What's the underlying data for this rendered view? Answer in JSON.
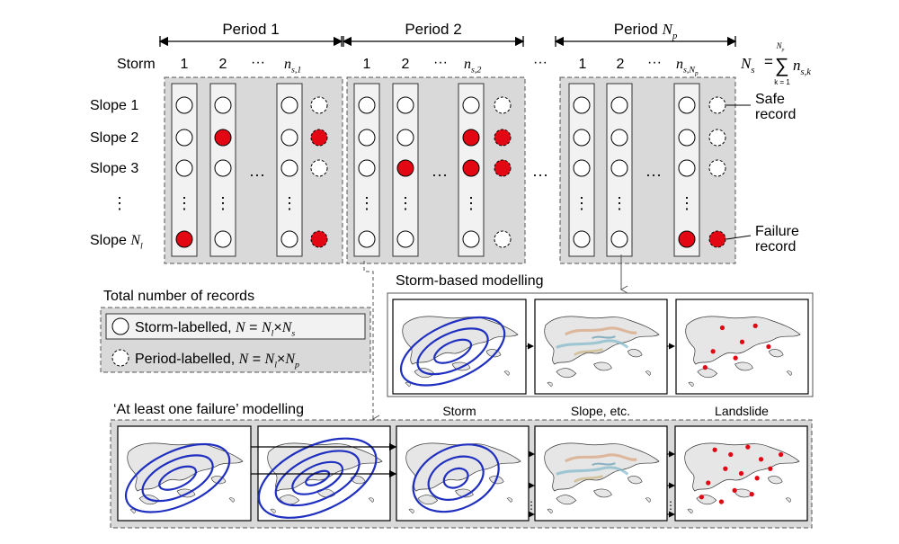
{
  "header": {
    "period1": "Period 1",
    "period2": "Period 2",
    "periodN": "Period",
    "periodN_sub": "p",
    "storm_label": "Storm",
    "storm_nums": [
      "1",
      "2"
    ],
    "ellipsis": "···",
    "ns_main": "n",
    "ns_sub1": "s,1",
    "ns_sub2": "s,2",
    "ns_subN": "s,N",
    "ns_subN_p": "p",
    "formula_lhs": "N",
    "formula_lhs_sub": "s",
    "formula_eq": "=",
    "formula_sum": "∑",
    "formula_top": "N",
    "formula_top_sub": "p",
    "formula_bottom": "k = 1",
    "formula_term": "n",
    "formula_term_sub": "s,k"
  },
  "slopes": [
    "Slope 1",
    "Slope 2",
    "Slope 3",
    "Slope"
  ],
  "slope_last_sub": "l",
  "slope_last_var": "N",
  "vdots": "⋮",
  "labels": {
    "safe_line1": "Safe",
    "safe_line2": "record",
    "failure_line1": "Failure",
    "failure_line2": "record"
  },
  "storm_based": {
    "title": "Storm-based modelling",
    "cap_storm": "Storm",
    "cap_slope": "Slope, etc.",
    "cap_landslide": "Landslide"
  },
  "total": {
    "title": "Total number of records",
    "storm_label": "Storm-labelled,",
    "storm_formula_lhs": "N",
    "storm_formula_eq": " = ",
    "storm_formula_a": "N",
    "storm_formula_a_sub": "l",
    "storm_formula_times": "×",
    "storm_formula_b": "N",
    "storm_formula_b_sub": "s",
    "period_label": "Period-labelled,",
    "period_formula_b_sub": "p"
  },
  "at_least": {
    "title": "‘At least one failure’ modelling"
  },
  "colors": {
    "panel_bg": "#d9d9d9",
    "failure_red": "#e30613",
    "storm_blue": "#1f2fbf",
    "column_bg": "#f2f2f2"
  }
}
